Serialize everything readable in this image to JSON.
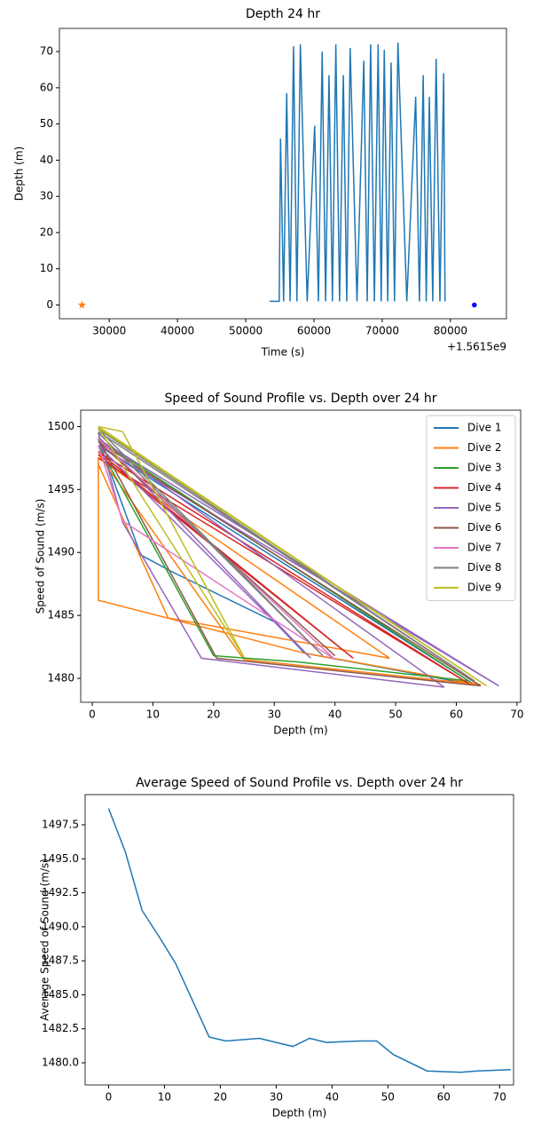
{
  "chart_data": [
    {
      "type": "line",
      "title": "Depth 24 hr",
      "xlabel": "Time (s)",
      "ylabel": "Depth (m)",
      "x_offset_label": "+1.5615e9",
      "xlim": [
        22700,
        88200
      ],
      "xticks": [
        30000,
        40000,
        50000,
        60000,
        70000,
        80000
      ],
      "ylim": [
        -3.8,
        76.4
      ],
      "yticks": [
        0,
        10,
        20,
        30,
        40,
        50,
        60,
        70
      ],
      "series": [
        {
          "color": "#1f77b4",
          "marker": "none",
          "x": [
            53500,
            54900,
            55100,
            55550,
            56000,
            56500,
            57000,
            57500,
            58000,
            59000,
            60100,
            60650,
            61200,
            61700,
            62200,
            62700,
            63200,
            63750,
            64300,
            64800,
            65300,
            66300,
            67300,
            67800,
            68300,
            68850,
            69400,
            69850,
            70300,
            70800,
            71300,
            71800,
            72300,
            73600,
            74900,
            75450,
            76000,
            76450,
            76900,
            77400,
            77900,
            78450,
            79000,
            79200
          ],
          "values": [
            1,
            1,
            46,
            1,
            58.5,
            1,
            71.5,
            1,
            72,
            1,
            49.5,
            1,
            70,
            1,
            63.5,
            1,
            72,
            1,
            63.5,
            1,
            71,
            1,
            67.5,
            1,
            72,
            1,
            72,
            1,
            70.5,
            1,
            67,
            1,
            72.5,
            1,
            57.5,
            1,
            63.5,
            1,
            57.5,
            1,
            68,
            1,
            64,
            1
          ]
        },
        {
          "color": "#ff7f0e",
          "marker": "star",
          "line": false,
          "x": [
            26000
          ],
          "values": [
            0
          ]
        },
        {
          "color": "#0000ff",
          "marker": "dot",
          "line": false,
          "x": [
            83500
          ],
          "values": [
            0
          ]
        }
      ]
    },
    {
      "type": "line",
      "title": "Speed of Sound Profile vs. Depth over 24 hr",
      "xlabel": "Depth (m)",
      "ylabel": "Speed of Sound (m/s)",
      "legend": "upper right",
      "xlim": [
        -1.9,
        70.6
      ],
      "xticks": [
        0,
        10,
        20,
        30,
        40,
        50,
        60,
        70
      ],
      "ylim": [
        1478.1,
        1501.3
      ],
      "yticks": [
        1480,
        1485,
        1490,
        1495,
        1500
      ],
      "series": [
        {
          "name": "Dive 1",
          "color": "#1f77b4",
          "x": [
            1,
            8,
            13,
            30,
            35,
            63,
            1
          ],
          "values": [
            1499,
            1489.8,
            1488.5,
            1484.5,
            1482,
            1479.5,
            1498.5
          ]
        },
        {
          "name": "Dive 2",
          "color": "#ff7f0e",
          "x": [
            1,
            12.5,
            49,
            1,
            1,
            35,
            64,
            25,
            1
          ],
          "values": [
            1497,
            1484.8,
            1481.6,
            1497.5,
            1486.2,
            1482,
            1479.5,
            1481.5,
            1497.8
          ]
        },
        {
          "name": "Dive 3",
          "color": "#2ca02c",
          "x": [
            1,
            20,
            34,
            62,
            1
          ],
          "values": [
            1498.5,
            1481.8,
            1481.3,
            1479.8,
            1499
          ]
        },
        {
          "name": "Dive 4",
          "color": "#d62728",
          "x": [
            1,
            43,
            1,
            62,
            1
          ],
          "values": [
            1497.8,
            1481.6,
            1498,
            1479.6,
            1497.5
          ]
        },
        {
          "name": "Dive 5",
          "color": "#9467bd",
          "x": [
            1,
            5,
            18,
            58,
            1,
            67,
            1,
            36,
            1
          ],
          "values": [
            1499.5,
            1492.4,
            1481.6,
            1479.3,
            1499,
            1479.4,
            1498.5,
            1481.6,
            1499.2
          ]
        },
        {
          "name": "Dive 6",
          "color": "#8c564b",
          "x": [
            1,
            20.5,
            64,
            1,
            40
          ],
          "values": [
            1499,
            1481.6,
            1479.4,
            1498.8,
            1481.8
          ]
        },
        {
          "name": "Dive 7",
          "color": "#e377c2",
          "x": [
            1,
            5,
            40,
            1
          ],
          "values": [
            1498.5,
            1492.5,
            1481.5,
            1499
          ]
        },
        {
          "name": "Dive 8",
          "color": "#7f7f7f",
          "x": [
            1,
            38,
            1,
            63,
            1
          ],
          "values": [
            1499.5,
            1481.8,
            1499.8,
            1479.8,
            1499.6
          ]
        },
        {
          "name": "Dive 9",
          "color": "#bcbd22",
          "x": [
            1,
            5,
            25,
            1,
            65,
            1
          ],
          "values": [
            1500,
            1499.6,
            1481.7,
            1499.9,
            1479.4,
            1500
          ]
        }
      ]
    },
    {
      "type": "line",
      "title": "Average Speed of Sound Profile vs. Depth over 24 hr",
      "xlabel": "Depth (m)",
      "ylabel": "Average Speed of Sound (m/s)",
      "xlim": [
        -4.2,
        72.5
      ],
      "xticks": [
        0,
        10,
        20,
        30,
        40,
        50,
        60,
        70
      ],
      "ylim": [
        1478.37,
        1499.72
      ],
      "yticks": [
        {
          "value": 1480,
          "label": "1480.0"
        },
        1482.5,
        {
          "value": 1485,
          "label": "1485.0"
        },
        1487.5,
        {
          "value": 1490,
          "label": "1490.0"
        },
        1492.5,
        {
          "value": 1495,
          "label": "1495.0"
        },
        1497.5
      ],
      "series": [
        {
          "color": "#1f77b4",
          "x": [
            0,
            3,
            6,
            9,
            12,
            15,
            18,
            21,
            27,
            33,
            36,
            39,
            45,
            48,
            51,
            57,
            63,
            66,
            72
          ],
          "values": [
            1498.7,
            1495.5,
            1491.2,
            1489.3,
            1487.3,
            1484.6,
            1481.9,
            1481.6,
            1481.8,
            1481.2,
            1481.8,
            1481.5,
            1481.6,
            1481.6,
            1480.6,
            1479.4,
            1479.3,
            1479.4,
            1479.5
          ]
        }
      ]
    }
  ]
}
